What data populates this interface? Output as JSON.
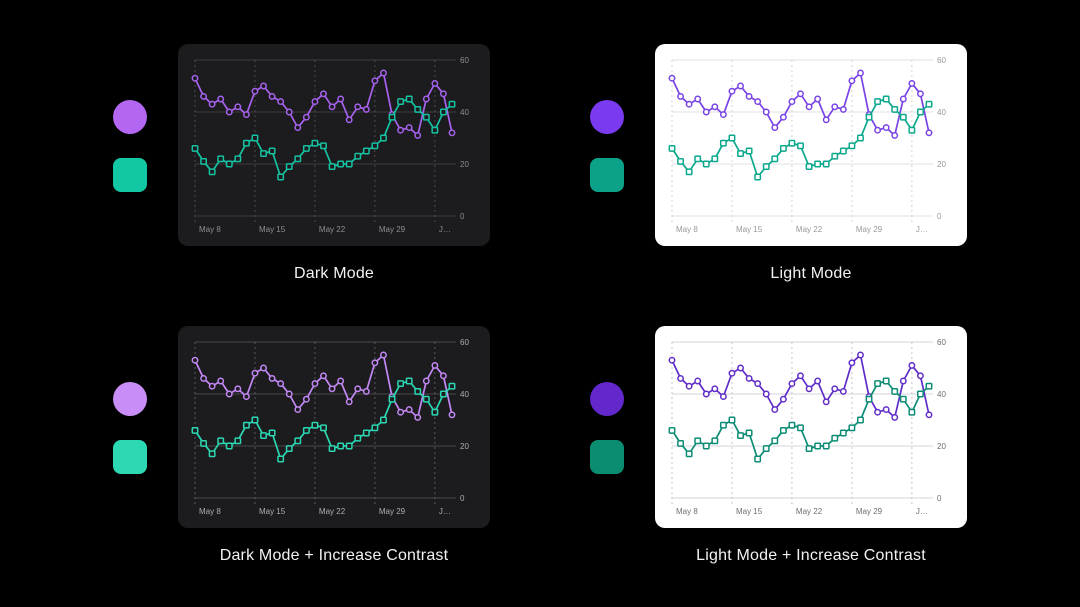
{
  "page": {
    "background": "#000000",
    "caption_color": "#f2f2f5"
  },
  "chart_data": {
    "type": "line",
    "title": "",
    "xlabel": "",
    "ylabel": "",
    "ylim": [
      0,
      60
    ],
    "y_ticks": [
      0,
      20,
      40,
      60
    ],
    "y_axis_side": "right",
    "x_tick_labels": [
      "May 8",
      "May 15",
      "May 22",
      "May 29",
      "J…"
    ],
    "x_tick_indices": [
      0,
      7,
      14,
      21,
      28
    ],
    "grid": {
      "horizontal": "solid",
      "vertical": "dashed"
    },
    "legend_position": "none",
    "series": [
      {
        "name": "purple-series",
        "marker": "circle",
        "values": [
          53,
          46,
          43,
          45,
          40,
          42,
          39,
          48,
          50,
          46,
          44,
          40,
          34,
          38,
          44,
          47,
          42,
          45,
          37,
          42,
          41,
          52,
          55,
          39,
          33,
          34,
          31,
          45,
          51,
          47,
          32
        ]
      },
      {
        "name": "teal-series",
        "marker": "square",
        "values": [
          26,
          21,
          17,
          22,
          20,
          22,
          28,
          30,
          24,
          25,
          15,
          19,
          22,
          26,
          28,
          27,
          19,
          20,
          20,
          23,
          25,
          27,
          30,
          38,
          44,
          45,
          41,
          38,
          33,
          40,
          43
        ]
      }
    ]
  },
  "variants": [
    {
      "id": "dark",
      "caption": "Dark Mode",
      "panel_bg": "#1c1c1e",
      "grid_h": "#3d3d3f",
      "grid_v": "#4d4d4f",
      "tick_color": "#8e8e93",
      "series_colors": [
        "#a862f0",
        "#15c2a2"
      ],
      "swatch_circle": "#b266f2",
      "swatch_square": "#12c7a4"
    },
    {
      "id": "light",
      "caption": "Light Mode",
      "panel_bg": "#ffffff",
      "grid_h": "#e2e2e7",
      "grid_v": "#d4d4d8",
      "tick_color": "#98989d",
      "series_colors": [
        "#7842e5",
        "#0ba88b"
      ],
      "swatch_circle": "#7a3af0",
      "swatch_square": "#0ca189"
    },
    {
      "id": "dark-increase-contrast",
      "caption": "Dark Mode + Increase Contrast",
      "panel_bg": "#1c1c1e",
      "grid_h": "#48484b",
      "grid_v": "#5a5a5e",
      "tick_color": "#aeaeb2",
      "series_colors": [
        "#c489f6",
        "#2bd8b3"
      ],
      "swatch_circle": "#c88df6",
      "swatch_square": "#2cd9b2"
    },
    {
      "id": "light-increase-contrast",
      "caption": "Light Mode + Increase Contrast",
      "panel_bg": "#ffffff",
      "grid_h": "#d6d6db",
      "grid_v": "#c6c6cb",
      "tick_color": "#6e6e73",
      "series_colors": [
        "#5f2cc8",
        "#0c8c74"
      ],
      "swatch_circle": "#6228cc",
      "swatch_square": "#0b8d72"
    }
  ]
}
